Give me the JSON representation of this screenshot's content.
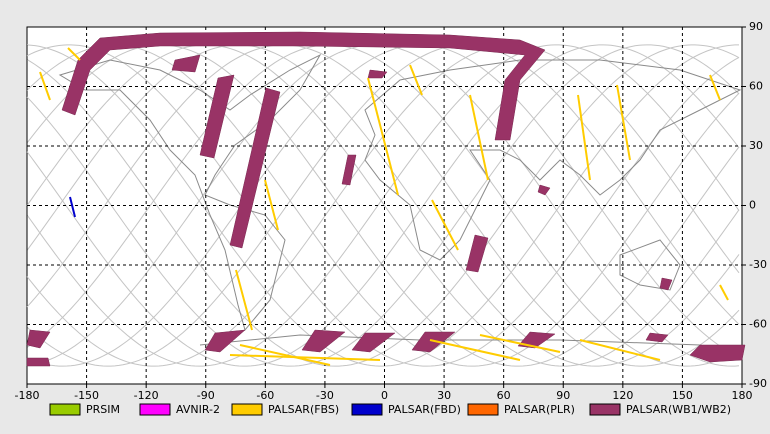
{
  "map": {
    "xlim": [
      -180,
      180
    ],
    "ylim": [
      -90,
      90
    ],
    "xticks": [
      -180,
      -150,
      -120,
      -90,
      -60,
      -30,
      0,
      30,
      60,
      90,
      120,
      150,
      180
    ],
    "yticks": [
      90,
      60,
      30,
      0,
      -30,
      -60,
      -90
    ],
    "grid": true,
    "legend": [
      {
        "name": "PRSIM",
        "color": "#99cc00"
      },
      {
        "name": "AVNIR-2",
        "color": "#ff00ff"
      },
      {
        "name": "PALSAR(FBS)",
        "color": "#ffcc00"
      },
      {
        "name": "PALSAR(FBD)",
        "color": "#0000cc"
      },
      {
        "name": "PALSAR(PLR)",
        "color": "#ff6600"
      },
      {
        "name": "PALSAR(WB1/WB2)",
        "color": "#993366"
      }
    ]
  }
}
